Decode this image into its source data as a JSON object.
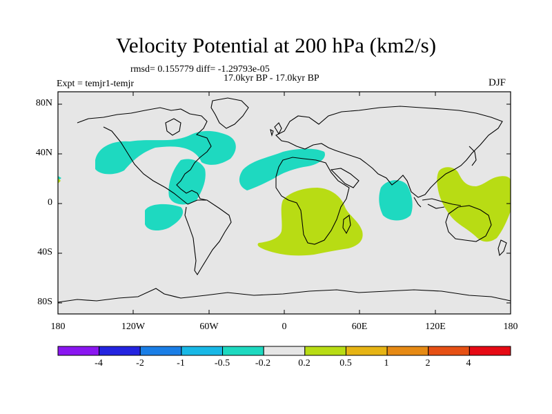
{
  "header": {
    "title": "Velocity Potential at 200 hPa (km2/s)",
    "stats": "rmsd= 0.155779 diff= -1.29793e-05",
    "period": "17.0kyr BP - 17.0kyr BP",
    "experiment": "Expt = temjr1-temjr",
    "season": "DJF"
  },
  "axes": {
    "lat_labels": [
      "80N",
      "40N",
      "0",
      "40S",
      "80S"
    ],
    "lon_labels": [
      "180",
      "120W",
      "60W",
      "0",
      "60E",
      "120E",
      "180"
    ]
  },
  "colorbar": {
    "labels": [
      "-4",
      "-2",
      "-1",
      "-0.5",
      "-0.2",
      "0.2",
      "0.5",
      "1",
      "2",
      "4"
    ],
    "colors": [
      "#8a16f0",
      "#2424e0",
      "#1a7ee6",
      "#18b8e6",
      "#1ed9c0",
      "#e6e6e6",
      "#b8dc14",
      "#e6b414",
      "#e68a14",
      "#e65014",
      "#e60a14"
    ]
  },
  "fill_colors": {
    "negative": "#1ed9c0",
    "positive": "#b8dc14",
    "background": "#e6e6e6"
  }
}
